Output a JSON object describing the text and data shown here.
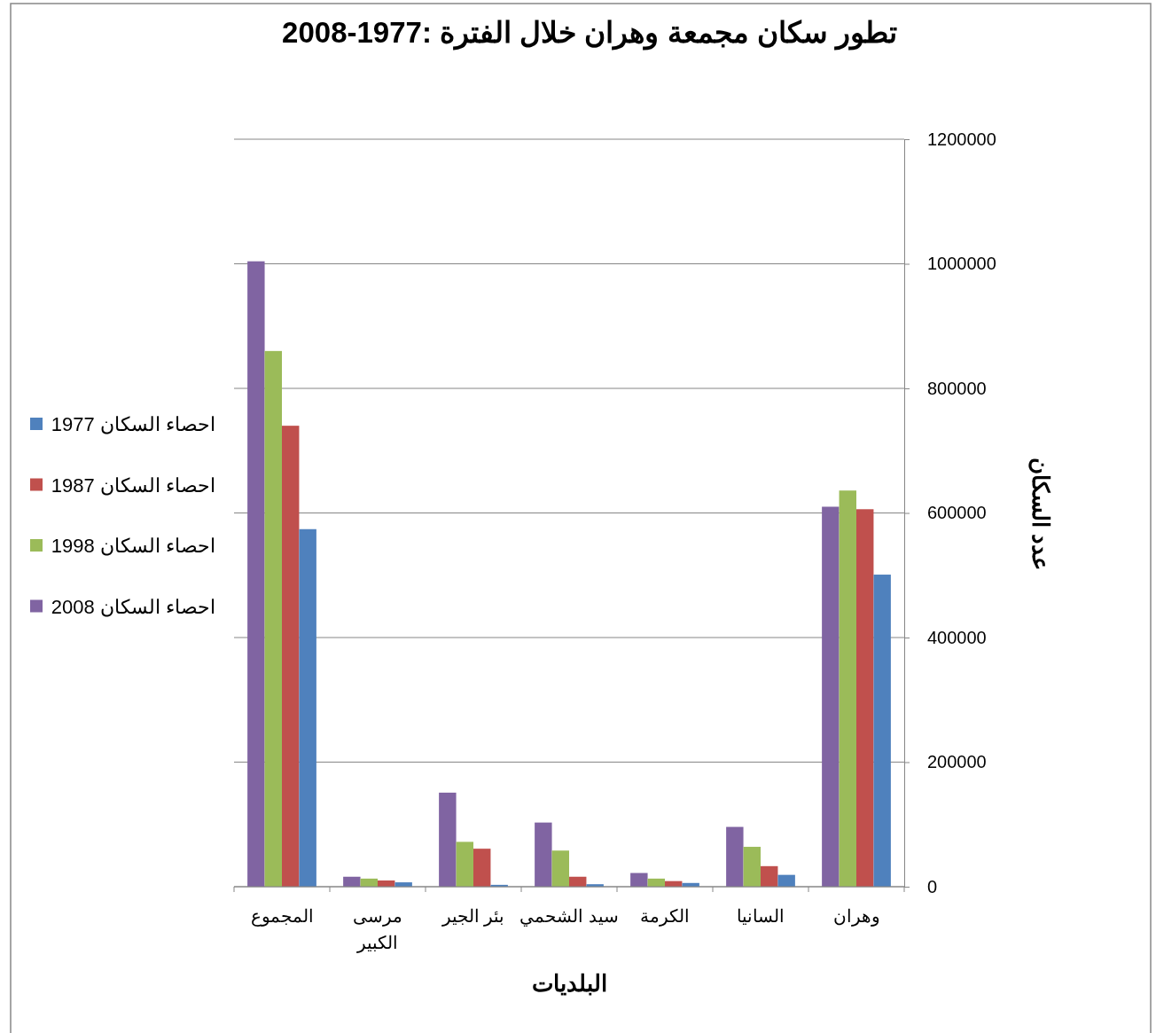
{
  "chart_data": {
    "type": "bar",
    "title": "تطور سكان مجمعة وهران خلال الفترة :1977-2008",
    "xlabel": "البلديات",
    "ylabel": "عدد السكان",
    "categories": [
      "المجموع",
      "مرسى الكبير",
      "بئر الجير",
      "سيد الشحمي",
      "الكرمة",
      "السانيا",
      "وهران"
    ],
    "series": [
      {
        "name": "احصاء السكان 2008",
        "color": "#8064a2",
        "values": [
          1004000,
          16000,
          151000,
          103000,
          22000,
          96000,
          610000
        ]
      },
      {
        "name": "احصاء السكان 1998",
        "color": "#9bbb59",
        "values": [
          860000,
          13000,
          72000,
          58000,
          13000,
          64000,
          636000
        ]
      },
      {
        "name": "احصاء السكان 1987",
        "color": "#c0504d",
        "values": [
          740000,
          10000,
          61000,
          16000,
          9000,
          33000,
          606000
        ]
      },
      {
        "name": "احصاء السكان 1977",
        "color": "#4f81bd",
        "values": [
          574000,
          7000,
          3000,
          4000,
          6000,
          19000,
          501000
        ]
      }
    ],
    "ylim": [
      0,
      1200000
    ],
    "yticks": [
      0,
      200000,
      400000,
      600000,
      800000,
      1000000,
      1200000
    ],
    "grid": "y",
    "legend": "left"
  }
}
